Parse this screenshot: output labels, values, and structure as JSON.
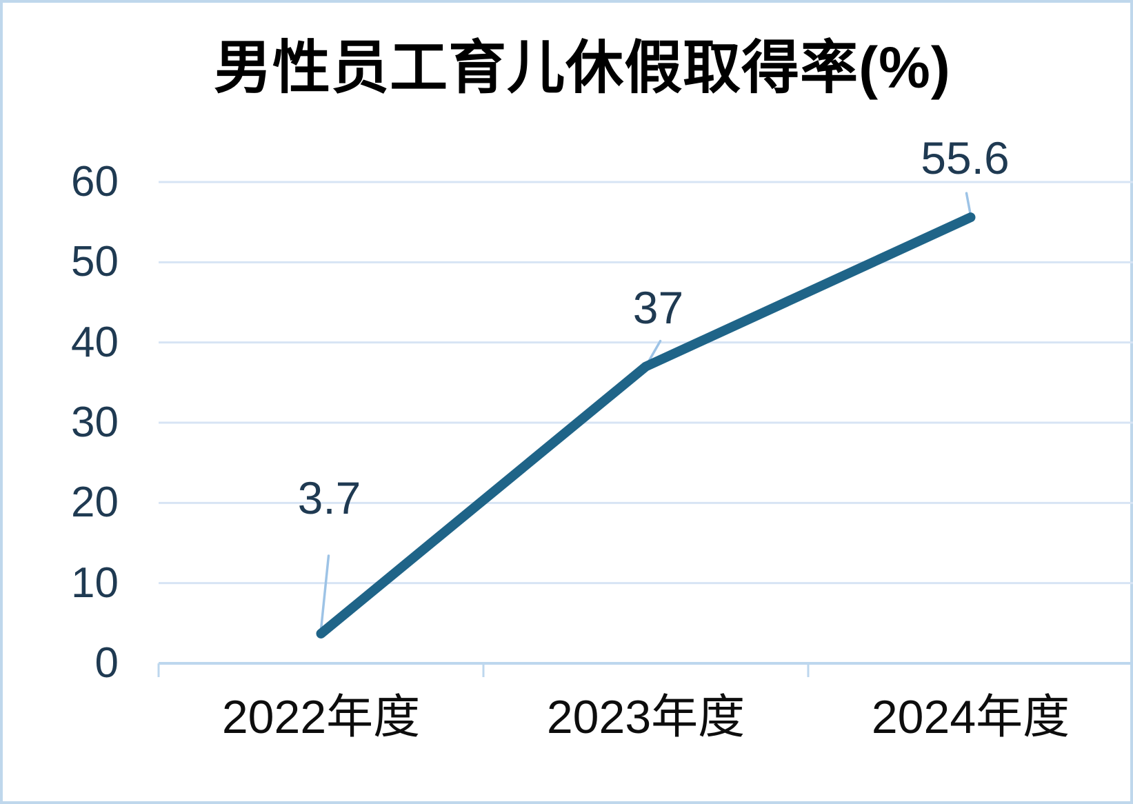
{
  "chart_data": {
    "type": "line",
    "title": "男性员工育儿休假取得率(%)",
    "categories": [
      "2022年度",
      "2023年度",
      "2024年度"
    ],
    "values": [
      3.7,
      37,
      55.6
    ],
    "data_labels": [
      "3.7",
      "37",
      "55.6"
    ],
    "xlabel": "",
    "ylabel": "",
    "ylim": [
      0,
      60
    ],
    "yticks": [
      0,
      10,
      20,
      30,
      40,
      50,
      60
    ],
    "grid": true,
    "legend_position": "none",
    "colors": {
      "line": "#1F6488",
      "data_label_text": "#1F3A52",
      "y_axis_text": "#1F3A52",
      "title_text": "#000000",
      "category_text": "#0D0D0D",
      "gridline": "#D7E4F4",
      "axis_line": "#BDD7EE",
      "leader_line": "#9DC3E6",
      "frame_border": "#BFD7EC",
      "background": "#FFFFFF"
    }
  }
}
